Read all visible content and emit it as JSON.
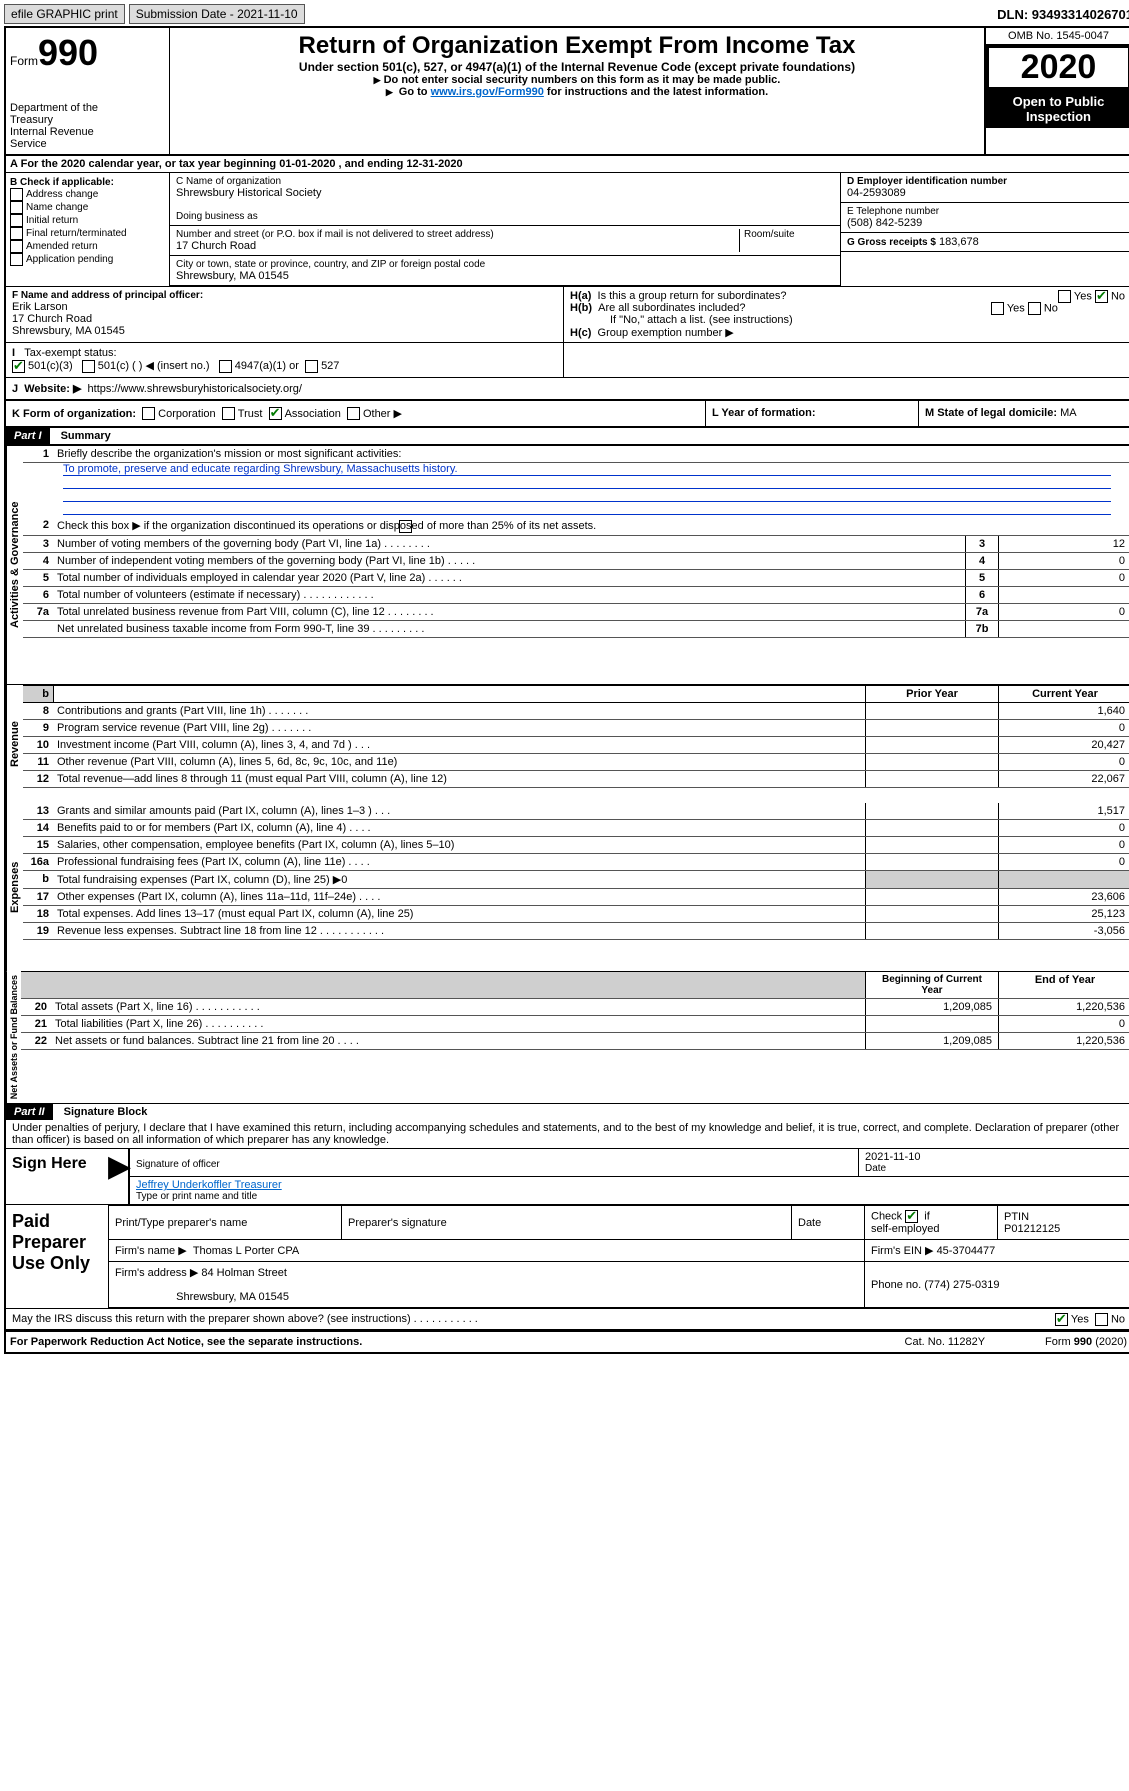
{
  "top": {
    "efile": "efile GRAPHIC print",
    "submission": "Submission Date - 2021-11-10",
    "dln": "DLN: 93493314026701"
  },
  "header": {
    "form_label": "Form",
    "form_num": "990",
    "dept": "Department of the Treasury\nInternal Revenue\nService",
    "title": "Return of Organization Exempt From Income Tax",
    "subtitle": "Under section 501(c), 527, or 4947(a)(1) of the Internal Revenue Code (except private foundations)",
    "note1": "Do not enter social security numbers on this form as it may be made public.",
    "note2_pre": "Go to ",
    "note2_link": "www.irs.gov/Form990",
    "note2_post": " for instructions and the latest information.",
    "omb": "OMB No. 1545-0047",
    "year": "2020",
    "open": "Open to Public Inspection"
  },
  "rowA": "For the 2020 calendar year, or tax year beginning 01-01-2020    , and ending 12-31-2020",
  "B": {
    "label": "B Check if applicable:",
    "items": [
      "Address change",
      "Name change",
      "Initial return",
      "Final return/terminated",
      "Amended return",
      "Application pending"
    ]
  },
  "C": {
    "name_label": "C Name of organization",
    "name": "Shrewsbury Historical Society",
    "dba_label": "Doing business as",
    "addr_label": "Number and street (or P.O. box if mail is not delivered to street address)",
    "room": "Room/suite",
    "addr": "17 Church Road",
    "city_label": "City or town, state or province, country, and ZIP or foreign postal code",
    "city": "Shrewsbury, MA  01545"
  },
  "D": {
    "label": "D Employer identification number",
    "val": "04-2593089"
  },
  "E": {
    "label": "E Telephone number",
    "val": "(508) 842-5239"
  },
  "G": {
    "label": "G Gross receipts $",
    "val": "183,678"
  },
  "F": {
    "label": "F  Name and address of principal officer:",
    "name": "Erik Larson",
    "addr": "17 Church Road",
    "city": "Shrewsbury, MA  01545"
  },
  "H": {
    "a": "Is this a group return for subordinates?",
    "b": "Are all subordinates included?",
    "b2": "If \"No,\" attach a list. (see instructions)",
    "c": "Group exemption number ▶"
  },
  "I": {
    "label": "Tax-exempt status:",
    "opts": [
      "501(c)(3)",
      "501(c) (  ) ◀ (insert no.)",
      "4947(a)(1) or",
      "527"
    ]
  },
  "J": {
    "label": "Website: ▶",
    "val": "https://www.shrewsburyhistoricalsociety.org/"
  },
  "K": {
    "label": "K Form of organization:",
    "opts": [
      "Corporation",
      "Trust",
      "Association",
      "Other ▶"
    ]
  },
  "L": {
    "label": "L Year of formation:",
    "val": ""
  },
  "M": {
    "label": "M State of legal domicile:",
    "val": "MA"
  },
  "partI": {
    "title": "Part I",
    "name": "Summary",
    "q1": "Briefly describe the organization's mission or most significant activities:",
    "mission": "To promote, preserve and educate regarding Shrewsbury, Massachusetts history.",
    "q2": "Check this box ▶        if the organization discontinued its operations or disposed of more than 25% of its net assets.",
    "lines_gov": [
      {
        "n": "3",
        "d": "Number of voting members of the governing body (Part VI, line 1a)   .    .    .    .    .    .    .    .",
        "k": "3",
        "v": "12"
      },
      {
        "n": "4",
        "d": "Number of independent voting members of the governing body (Part VI, line 1b)   .    .    .    .    .",
        "k": "4",
        "v": "0"
      },
      {
        "n": "5",
        "d": "Total number of individuals employed in calendar year 2020 (Part V, line 2a)   .    .    .    .    .    .",
        "k": "5",
        "v": "0"
      },
      {
        "n": "6",
        "d": "Total number of volunteers (estimate if necessary)   .    .    .    .    .    .    .    .    .    .    .    .",
        "k": "6",
        "v": ""
      },
      {
        "n": "7a",
        "d": "Total unrelated business revenue from Part VIII, column (C), line 12   .    .    .    .    .    .    .    .",
        "k": "7a",
        "v": "0"
      },
      {
        "n": "",
        "d": "Net unrelated business taxable income from Form 990-T, line 39   .    .    .    .    .    .    .    .    .",
        "k": "7b",
        "v": ""
      }
    ],
    "col_prior": "Prior Year",
    "col_curr": "Current Year",
    "rev": [
      {
        "n": "8",
        "d": "Contributions and grants (Part VIII, line 1h)   .    .    .    .    .    .    .",
        "p": "",
        "c": "1,640"
      },
      {
        "n": "9",
        "d": "Program service revenue (Part VIII, line 2g)   .    .    .    .    .    .    .",
        "p": "",
        "c": "0"
      },
      {
        "n": "10",
        "d": "Investment income (Part VIII, column (A), lines 3, 4, and 7d )   .    .    .",
        "p": "",
        "c": "20,427"
      },
      {
        "n": "11",
        "d": "Other revenue (Part VIII, column (A), lines 5, 6d, 8c, 9c, 10c, and 11e)",
        "p": "",
        "c": "0"
      },
      {
        "n": "12",
        "d": "Total revenue—add lines 8 through 11 (must equal Part VIII, column (A), line 12)",
        "p": "",
        "c": "22,067"
      }
    ],
    "exp": [
      {
        "n": "13",
        "d": "Grants and similar amounts paid (Part IX, column (A), lines 1–3 )   .    .    .",
        "p": "",
        "c": "1,517"
      },
      {
        "n": "14",
        "d": "Benefits paid to or for members (Part IX, column (A), line 4)   .    .    .    .",
        "p": "",
        "c": "0"
      },
      {
        "n": "15",
        "d": "Salaries, other compensation, employee benefits (Part IX, column (A), lines 5–10)",
        "p": "",
        "c": "0"
      },
      {
        "n": "16a",
        "d": "Professional fundraising fees (Part IX, column (A), line 11e)   .    .    .    .",
        "p": "",
        "c": "0"
      },
      {
        "n": "b",
        "d": "Total fundraising expenses (Part IX, column (D), line 25) ▶0",
        "p": "gray",
        "c": "gray"
      },
      {
        "n": "17",
        "d": "Other expenses (Part IX, column (A), lines 11a–11d, 11f–24e)   .    .    .    .",
        "p": "",
        "c": "23,606"
      },
      {
        "n": "18",
        "d": "Total expenses. Add lines 13–17 (must equal Part IX, column (A), line 25)",
        "p": "",
        "c": "25,123"
      },
      {
        "n": "19",
        "d": "Revenue less expenses. Subtract line 18 from line 12   .    .    .    .    .    .    .    .    .    .    .",
        "p": "",
        "c": "-3,056"
      }
    ],
    "col_beg": "Beginning of Current Year",
    "col_end": "End of Year",
    "net": [
      {
        "n": "20",
        "d": "Total assets (Part X, line 16)   .    .    .    .    .    .    .    .    .    .    .",
        "p": "1,209,085",
        "c": "1,220,536"
      },
      {
        "n": "21",
        "d": "Total liabilities (Part X, line 26)   .    .    .    .    .    .    .    .    .    .",
        "p": "",
        "c": "0"
      },
      {
        "n": "22",
        "d": "Net assets or fund balances. Subtract line 21 from line 20   .    .    .    .",
        "p": "1,209,085",
        "c": "1,220,536"
      }
    ],
    "vlabels": {
      "gov": "Activities & Governance",
      "rev": "Revenue",
      "exp": "Expenses",
      "net": "Net Assets or Fund Balances"
    }
  },
  "partII": {
    "title": "Part II",
    "name": "Signature Block",
    "perjury": "Under penalties of perjury, I declare that I have examined this return, including accompanying schedules and statements, and to the best of my knowledge and belief, it is true, correct, and complete. Declaration of preparer (other than officer) is based on all information of which preparer has any knowledge.",
    "sign_here": "Sign Here",
    "sig_officer": "Signature of officer",
    "date": "2021-11-10",
    "date_lbl": "Date",
    "officer": "Jeffrey Underkoffler Treasurer",
    "type_name": "Type or print name and title",
    "paid": "Paid Preparer Use Only",
    "cols": {
      "a": "Print/Type preparer's name",
      "b": "Preparer's signature",
      "c": "Date",
      "d": "Check        if self-employed",
      "e": "PTIN"
    },
    "ptin": "P01212125",
    "firm_name_lbl": "Firm's name      ▶",
    "firm_name": "Thomas L Porter CPA",
    "firm_ein_lbl": "Firm's EIN ▶",
    "firm_ein": "45-3704477",
    "firm_addr_lbl": "Firm's address ▶",
    "firm_addr": "84 Holman Street",
    "firm_city": "Shrewsbury, MA  01545",
    "phone_lbl": "Phone no.",
    "phone": "(774) 275-0319",
    "discuss": "May the IRS discuss this return with the preparer shown above? (see instructions)   .    .    .    .    .    .    .    .    .    .    ."
  },
  "footer": {
    "pra": "For Paperwork Reduction Act Notice, see the separate instructions.",
    "cat": "Cat. No. 11282Y",
    "form": "Form 990 (2020)"
  }
}
